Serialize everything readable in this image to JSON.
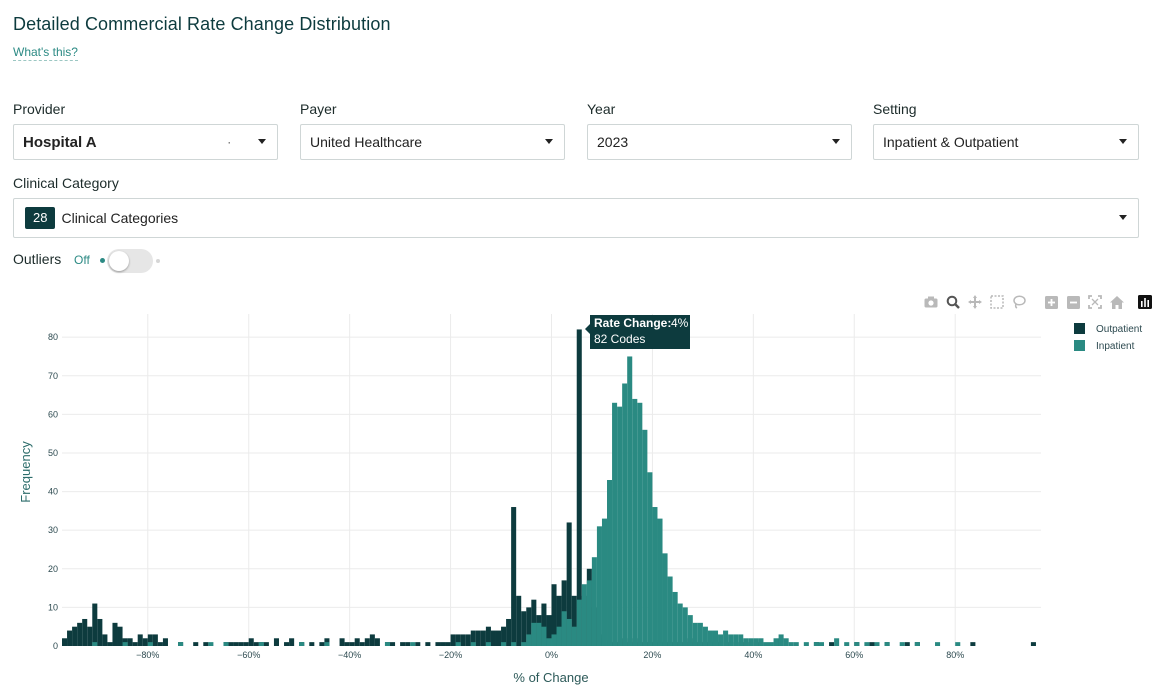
{
  "header": {
    "title": "Detailed Commercial Rate Change Distribution",
    "help_link": "What's this?"
  },
  "filters": {
    "provider": {
      "label": "Provider",
      "value": "Hospital A"
    },
    "payer": {
      "label": "Payer",
      "value": "United Healthcare"
    },
    "year": {
      "label": "Year",
      "value": "2023"
    },
    "setting": {
      "label": "Setting",
      "value": "Inpatient & Outpatient"
    },
    "clinical": {
      "label": "Clinical Category",
      "count": "28",
      "value": "Clinical Categories"
    }
  },
  "outliers": {
    "label": "Outliers",
    "state": "Off"
  },
  "modebar": {
    "icons": [
      "camera-icon",
      "zoom-icon",
      "pan-icon",
      "box-select-icon",
      "lasso-icon",
      "zoom-in-icon",
      "zoom-out-icon",
      "autoscale-icon",
      "home-icon",
      "plotly-logo-icon"
    ]
  },
  "tooltip": {
    "label": "Rate Change:",
    "value": "4%",
    "codes": "82 Codes"
  },
  "colors": {
    "outpatient": "#0d3b3e",
    "inpatient": "#2a8a82",
    "accent": "#2c8a84"
  },
  "chart_data": {
    "type": "bar",
    "title": "",
    "xlabel": "% of Change",
    "ylabel": "Frequency",
    "xlim": [
      -97,
      97
    ],
    "ylim": [
      0,
      86
    ],
    "x_ticks": [
      -80,
      -60,
      -40,
      -20,
      0,
      20,
      40,
      60,
      80
    ],
    "x_tick_labels": [
      "−80%",
      "−60%",
      "−40%",
      "−20%",
      "0%",
      "20%",
      "40%",
      "60%",
      "80%"
    ],
    "y_ticks": [
      0,
      10,
      20,
      30,
      40,
      50,
      60,
      70,
      80
    ],
    "y_tick_labels": [
      "0",
      "10",
      "20",
      "30",
      "40",
      "50",
      "60",
      "70",
      "80"
    ],
    "grid": true,
    "legend_position": "top-right",
    "bin_width": 1,
    "series": [
      {
        "name": "Outpatient",
        "color": "#0d3b3e",
        "bins": [
          [
            -97,
            2
          ],
          [
            -96,
            4
          ],
          [
            -95,
            5
          ],
          [
            -94,
            6
          ],
          [
            -93,
            7
          ],
          [
            -92,
            5
          ],
          [
            -91,
            11
          ],
          [
            -90,
            7
          ],
          [
            -89,
            3
          ],
          [
            -88,
            1
          ],
          [
            -87,
            6
          ],
          [
            -86,
            5
          ],
          [
            -85,
            2
          ],
          [
            -84,
            2
          ],
          [
            -83,
            1
          ],
          [
            -82,
            3
          ],
          [
            -81,
            2
          ],
          [
            -80,
            3
          ],
          [
            -79,
            3
          ],
          [
            -78,
            1
          ],
          [
            -77,
            2
          ],
          [
            -74,
            1
          ],
          [
            -71,
            1
          ],
          [
            -69,
            1
          ],
          [
            -65,
            1
          ],
          [
            -64,
            1
          ],
          [
            -63,
            1
          ],
          [
            -62,
            1
          ],
          [
            -61,
            1
          ],
          [
            -60,
            2
          ],
          [
            -59,
            1
          ],
          [
            -58,
            1
          ],
          [
            -57,
            1
          ],
          [
            -55,
            2
          ],
          [
            -53,
            1
          ],
          [
            -52,
            2
          ],
          [
            -50,
            1
          ],
          [
            -48,
            1
          ],
          [
            -46,
            1
          ],
          [
            -45,
            2
          ],
          [
            -42,
            2
          ],
          [
            -41,
            1
          ],
          [
            -40,
            1
          ],
          [
            -39,
            2
          ],
          [
            -38,
            1
          ],
          [
            -37,
            2
          ],
          [
            -36,
            3
          ],
          [
            -35,
            2
          ],
          [
            -33,
            1
          ],
          [
            -32,
            1
          ],
          [
            -30,
            1
          ],
          [
            -29,
            1
          ],
          [
            -27,
            1
          ],
          [
            -25,
            1
          ],
          [
            -23,
            1
          ],
          [
            -22,
            1
          ],
          [
            -21,
            1
          ],
          [
            -20,
            3
          ],
          [
            -19,
            3
          ],
          [
            -18,
            3
          ],
          [
            -17,
            3
          ],
          [
            -16,
            4
          ],
          [
            -15,
            4
          ],
          [
            -14,
            4
          ],
          [
            -13,
            5
          ],
          [
            -12,
            4
          ],
          [
            -11,
            4
          ],
          [
            -10,
            5
          ],
          [
            -9,
            7
          ],
          [
            -8,
            36
          ],
          [
            -7,
            13
          ],
          [
            -6,
            9
          ],
          [
            -5,
            10
          ],
          [
            -4,
            12
          ],
          [
            -3,
            8
          ],
          [
            -2,
            11
          ],
          [
            -1,
            8
          ],
          [
            0,
            16
          ],
          [
            1,
            13
          ],
          [
            2,
            17
          ],
          [
            3,
            32
          ],
          [
            4,
            13
          ],
          [
            5,
            82
          ],
          [
            6,
            13
          ],
          [
            7,
            20
          ],
          [
            8,
            10
          ],
          [
            9,
            3
          ],
          [
            10,
            2
          ],
          [
            11,
            1
          ],
          [
            12,
            1
          ],
          [
            13,
            1
          ],
          [
            14,
            2
          ],
          [
            15,
            1
          ],
          [
            16,
            2
          ],
          [
            17,
            1
          ],
          [
            18,
            1
          ],
          [
            19,
            1
          ],
          [
            20,
            1
          ],
          [
            22,
            1
          ],
          [
            23,
            1
          ],
          [
            24,
            1
          ],
          [
            25,
            1
          ],
          [
            26,
            1
          ],
          [
            27,
            2
          ],
          [
            28,
            1
          ],
          [
            29,
            1
          ],
          [
            30,
            1
          ],
          [
            31,
            1
          ],
          [
            32,
            1
          ],
          [
            33,
            1
          ],
          [
            35,
            1
          ],
          [
            37,
            1
          ],
          [
            38,
            1
          ],
          [
            40,
            1
          ],
          [
            45,
            2
          ],
          [
            52,
            1
          ],
          [
            55,
            1
          ],
          [
            60,
            1
          ],
          [
            63,
            1
          ],
          [
            66,
            1
          ],
          [
            70,
            1
          ],
          [
            72,
            1
          ],
          [
            83,
            1
          ],
          [
            95,
            1
          ]
        ]
      },
      {
        "name": "Inpatient",
        "color": "#2a8a82",
        "bins": [
          [
            -91,
            1
          ],
          [
            -85,
            1
          ],
          [
            -80,
            1
          ],
          [
            -74,
            1
          ],
          [
            -68,
            1
          ],
          [
            -65,
            1
          ],
          [
            -58,
            1
          ],
          [
            -50,
            1
          ],
          [
            -45,
            1
          ],
          [
            -33,
            1
          ],
          [
            -28,
            1
          ],
          [
            -19,
            1
          ],
          [
            -16,
            1
          ],
          [
            -13,
            1
          ],
          [
            -10,
            1
          ],
          [
            -8,
            1
          ],
          [
            -6,
            1
          ],
          [
            -5,
            3
          ],
          [
            -4,
            6
          ],
          [
            -3,
            6
          ],
          [
            -2,
            5
          ],
          [
            -1,
            2
          ],
          [
            0,
            3
          ],
          [
            1,
            5
          ],
          [
            2,
            9
          ],
          [
            3,
            7
          ],
          [
            4,
            5
          ],
          [
            5,
            12
          ],
          [
            6,
            16
          ],
          [
            7,
            17
          ],
          [
            8,
            23
          ],
          [
            9,
            31
          ],
          [
            10,
            33
          ],
          [
            11,
            43
          ],
          [
            12,
            63
          ],
          [
            13,
            62
          ],
          [
            14,
            68
          ],
          [
            15,
            75
          ],
          [
            16,
            64
          ],
          [
            17,
            63
          ],
          [
            18,
            56
          ],
          [
            19,
            45
          ],
          [
            20,
            36
          ],
          [
            21,
            33
          ],
          [
            22,
            24
          ],
          [
            23,
            18
          ],
          [
            24,
            14
          ],
          [
            25,
            11
          ],
          [
            26,
            10
          ],
          [
            27,
            8
          ],
          [
            28,
            6
          ],
          [
            29,
            6
          ],
          [
            30,
            5
          ],
          [
            31,
            4
          ],
          [
            32,
            4
          ],
          [
            33,
            3
          ],
          [
            34,
            4
          ],
          [
            35,
            3
          ],
          [
            36,
            3
          ],
          [
            37,
            3
          ],
          [
            38,
            2
          ],
          [
            39,
            2
          ],
          [
            40,
            2
          ],
          [
            41,
            2
          ],
          [
            42,
            1
          ],
          [
            43,
            1
          ],
          [
            44,
            2
          ],
          [
            45,
            3
          ],
          [
            46,
            2
          ],
          [
            47,
            1
          ],
          [
            48,
            1
          ],
          [
            50,
            1
          ],
          [
            52,
            1
          ],
          [
            53,
            1
          ],
          [
            56,
            2
          ],
          [
            58,
            1
          ],
          [
            60,
            1
          ],
          [
            62,
            1
          ],
          [
            64,
            1
          ],
          [
            66,
            1
          ],
          [
            69,
            1
          ],
          [
            72,
            1
          ],
          [
            76,
            1
          ],
          [
            80,
            1
          ]
        ]
      }
    ]
  }
}
